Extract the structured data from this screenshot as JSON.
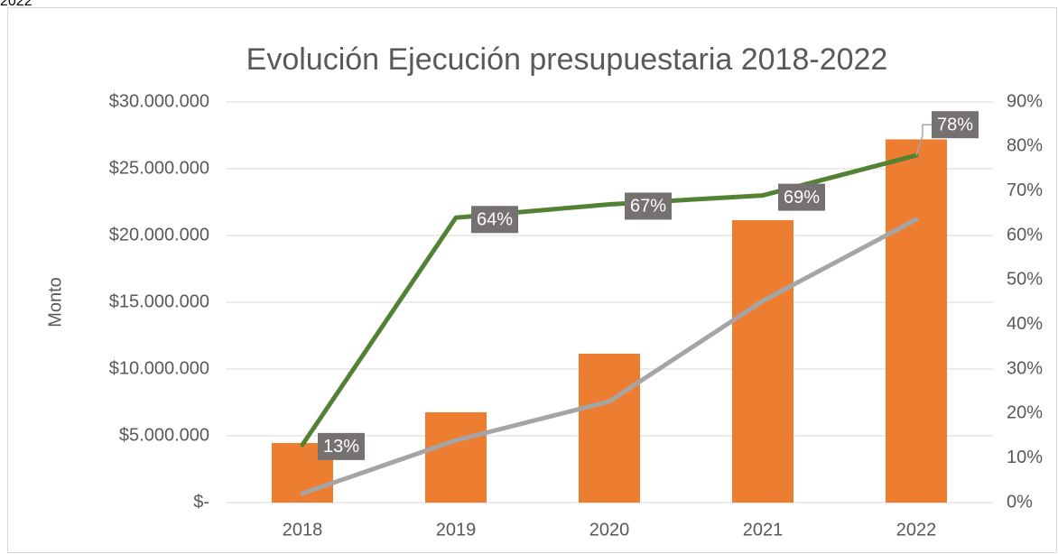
{
  "caption": "2022",
  "chart_data": {
    "type": "combo",
    "title": "Evolución Ejecución presupuestaria 2018-2022",
    "y_label": "Monto",
    "categories": [
      "2018",
      "2019",
      "2020",
      "2021",
      "2022"
    ],
    "series": [
      {
        "type": "bar",
        "color": "#ED7D31",
        "values": [
          4460000,
          6760000,
          11150000,
          21150000,
          27200000
        ]
      },
      {
        "type": "line",
        "color": "#A5A5A5",
        "values": [
          680000,
          4660000,
          7570000,
          15100000,
          21200000
        ]
      },
      {
        "type": "line",
        "color": "#548235",
        "axis": "y2",
        "values": [
          13,
          64,
          67,
          69,
          78
        ],
        "value_labels": [
          "13%",
          "64%",
          "67%",
          "69%",
          "78%"
        ]
      }
    ],
    "ylim": [
      0,
      30000000
    ],
    "yticks": [
      {
        "value": 0,
        "label": "$-"
      },
      {
        "value": 5000000,
        "label": "$5.000.000"
      },
      {
        "value": 10000000,
        "label": "$10.000.000"
      },
      {
        "value": 15000000,
        "label": "$15.000.000"
      },
      {
        "value": 20000000,
        "label": "$20.000.000"
      },
      {
        "value": 25000000,
        "label": "$25.000.000"
      },
      {
        "value": 30000000,
        "label": "$30.000.000"
      }
    ],
    "y2lim": [
      0,
      90
    ],
    "y2ticks": [
      {
        "value": 0,
        "label": "0%"
      },
      {
        "value": 10,
        "label": "10%"
      },
      {
        "value": 20,
        "label": "20%"
      },
      {
        "value": 30,
        "label": "30%"
      },
      {
        "value": 40,
        "label": "40%"
      },
      {
        "value": 50,
        "label": "50%"
      },
      {
        "value": 60,
        "label": "60%"
      },
      {
        "value": 70,
        "label": "70%"
      },
      {
        "value": 80,
        "label": "80%"
      },
      {
        "value": 90,
        "label": "90%"
      }
    ],
    "grid": true
  }
}
